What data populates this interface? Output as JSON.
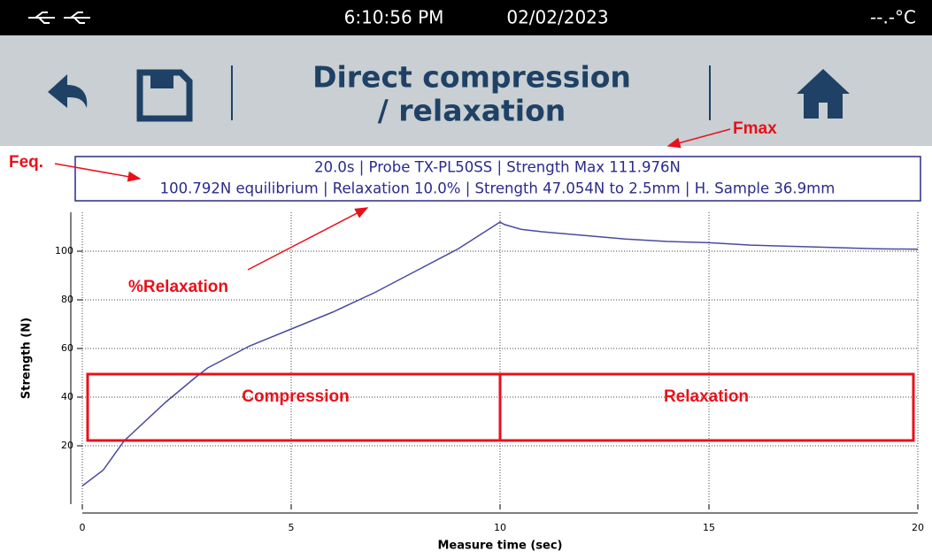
{
  "status": {
    "time": "6:10:56 PM",
    "date": "02/02/2023",
    "temperature": "--.-°C"
  },
  "toolbar": {
    "title": [
      "Direct compression",
      "/ relaxation"
    ]
  },
  "info": [
    "20.0s | Probe TX-PL50SS | Strength Max 111.976N",
    "100.792N equilibrium | Relaxation 10.0% | Strength 47.054N to 2.5mm | H. Sample 36.9mm"
  ],
  "chart_data": {
    "type": "line",
    "x_label": "Measure time (sec)",
    "y_label": "Strength (N)",
    "x": [
      0,
      0.5,
      1,
      2,
      2.7,
      3,
      4,
      5,
      6,
      7,
      8,
      9,
      10,
      10.1,
      10.5,
      11,
      12,
      13,
      14,
      15,
      16,
      17,
      18,
      19,
      20
    ],
    "values": [
      3.5,
      10,
      22,
      38,
      48,
      52,
      61,
      68,
      75,
      83,
      92,
      101,
      112,
      111,
      109,
      108,
      106.5,
      105,
      104,
      103.5,
      102.5,
      102,
      101.5,
      101,
      100.8
    ],
    "color": "#4a4aa0",
    "xlim": [
      0,
      20
    ],
    "xticks": [
      0,
      5,
      10,
      15,
      20
    ],
    "ylim": [
      -4,
      116
    ],
    "yticks": [
      20,
      40,
      60,
      80,
      100
    ],
    "grid": true,
    "annotations": [
      "Fmax",
      "Feq.",
      "%Relaxation",
      "Compression",
      "Relaxation"
    ]
  }
}
